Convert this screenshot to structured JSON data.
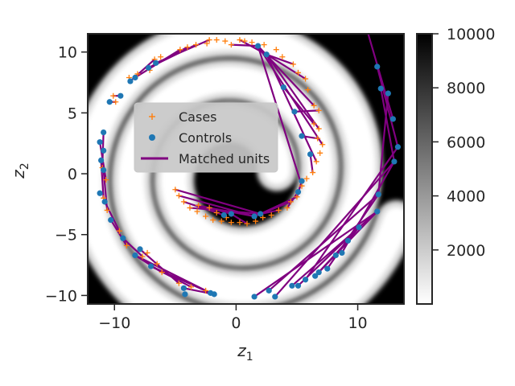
{
  "chart_data": {
    "type": "scatter",
    "xlabel_var": "z",
    "xlabel_sub": "1",
    "ylabel_var": "z",
    "ylabel_sub": "2",
    "xlim": [
      -12.2,
      13.8
    ],
    "ylim": [
      -10.7,
      11.5
    ],
    "xticks": [
      {
        "v": -10,
        "label": "−10"
      },
      {
        "v": 0,
        "label": "0"
      },
      {
        "v": 10,
        "label": "10"
      }
    ],
    "yticks": [
      {
        "v": -10,
        "label": "−10"
      },
      {
        "v": -5,
        "label": "−5"
      },
      {
        "v": 0,
        "label": "0"
      },
      {
        "v": 5,
        "label": "5"
      },
      {
        "v": 10,
        "label": "10"
      }
    ],
    "background": {
      "description_free": true,
      "density_band_width": 1.1,
      "spiral": {
        "a": 0.56,
        "b": 0.35,
        "t_start": 6.0,
        "t_end": 24.5
      }
    },
    "colorbar": {
      "vmin": 0,
      "vmax": 10000,
      "ticks": [
        {
          "v": 2000,
          "label": "2000"
        },
        {
          "v": 4000,
          "label": "4000"
        },
        {
          "v": 6000,
          "label": "6000"
        },
        {
          "v": 8000,
          "label": "8000"
        },
        {
          "v": 10000,
          "label": "10000"
        }
      ]
    },
    "legend": {
      "placement": "center-left",
      "entries": [
        {
          "key": "cases",
          "label": "Cases",
          "color": "#ff7f0e",
          "marker": "plus"
        },
        {
          "key": "controls",
          "label": "Controls",
          "color": "#1f77b4",
          "marker": "circle"
        },
        {
          "key": "matched",
          "label": "Matched units",
          "color": "#800080",
          "marker": "line"
        }
      ]
    },
    "series": [
      {
        "name": "Controls",
        "color": "#1f77b4",
        "points": [
          [
            -10.9,
            3.4
          ],
          [
            -11.2,
            2.6
          ],
          [
            -10.9,
            1.9
          ],
          [
            -11.1,
            1.1
          ],
          [
            -10.9,
            0.3
          ],
          [
            -10.8,
            -2.3
          ],
          [
            -11.2,
            -1.6
          ],
          [
            -10.3,
            -3.8
          ],
          [
            -9.3,
            -5.3
          ],
          [
            -7.9,
            -6.2
          ],
          [
            -8.3,
            -6.7
          ],
          [
            -7.0,
            -7.6
          ],
          [
            -4.3,
            -9.4
          ],
          [
            -4.2,
            -9.9
          ],
          [
            -2.1,
            -9.8
          ],
          [
            -1.8,
            -9.9
          ],
          [
            -10.4,
            5.9
          ],
          [
            -9.5,
            6.4
          ],
          [
            -8.7,
            7.6
          ],
          [
            -8.3,
            7.9
          ],
          [
            -7.2,
            8.7
          ],
          [
            -6.6,
            9.1
          ],
          [
            1.5,
            -10.1
          ],
          [
            2.7,
            -9.6
          ],
          [
            3.2,
            -10.1
          ],
          [
            4.6,
            -9.2
          ],
          [
            5.1,
            -9.2
          ],
          [
            5.7,
            -8.7
          ],
          [
            6.5,
            -8.4
          ],
          [
            6.8,
            -8.1
          ],
          [
            7.5,
            -7.8
          ],
          [
            8.2,
            -6.7
          ],
          [
            8.7,
            -6.5
          ],
          [
            9.2,
            -5.5
          ],
          [
            10.1,
            -4.4
          ],
          [
            10.8,
            11.7
          ],
          [
            11.6,
            8.8
          ],
          [
            11.9,
            7.0
          ],
          [
            12.5,
            6.6
          ],
          [
            12.9,
            4.5
          ],
          [
            13.3,
            2.2
          ],
          [
            13.0,
            1.0
          ],
          [
            11.6,
            -3.1
          ],
          [
            11.7,
            -1.7
          ],
          [
            2.5,
            9.8
          ],
          [
            1.8,
            10.5
          ],
          [
            2.0,
            -3.3
          ],
          [
            1.5,
            -3.5
          ],
          [
            -0.4,
            -3.3
          ],
          [
            -1.0,
            -3.4
          ],
          [
            6.1,
            1.6
          ],
          [
            5.4,
            3.1
          ],
          [
            4.8,
            5.1
          ],
          [
            3.9,
            7.1
          ],
          [
            5.4,
            -0.6
          ],
          [
            5.1,
            -1.5
          ]
        ]
      },
      {
        "name": "Cases",
        "color": "#ff7f0e",
        "points": [
          [
            -11.0,
            0.5
          ],
          [
            -10.7,
            -0.5
          ],
          [
            -10.9,
            -2.0
          ],
          [
            -10.6,
            -3.0
          ],
          [
            -9.6,
            -4.7
          ],
          [
            -9.0,
            -5.9
          ],
          [
            -7.7,
            -6.8
          ],
          [
            -7.3,
            -6.5
          ],
          [
            -6.5,
            -7.4
          ],
          [
            -6.1,
            -8.1
          ],
          [
            -4.7,
            -9.0
          ],
          [
            -3.7,
            -9.3
          ],
          [
            -2.5,
            -9.6
          ],
          [
            -9.9,
            5.9
          ],
          [
            -10.1,
            6.4
          ],
          [
            -8.8,
            7.9
          ],
          [
            -8.1,
            8.2
          ],
          [
            -7.1,
            8.5
          ],
          [
            -6.7,
            9.4
          ],
          [
            -6.2,
            9.6
          ],
          [
            -4.6,
            10.2
          ],
          [
            -4.0,
            10.4
          ],
          [
            -3.3,
            10.6
          ],
          [
            -2.4,
            10.7
          ],
          [
            -2.2,
            11.0
          ],
          [
            -1.6,
            11.0
          ],
          [
            -0.9,
            10.9
          ],
          [
            0.3,
            11.0
          ],
          [
            -0.4,
            10.6
          ],
          [
            0.7,
            10.9
          ],
          [
            1.3,
            10.8
          ],
          [
            2.3,
            10.6
          ],
          [
            3.3,
            10.2
          ],
          [
            3.8,
            9.6
          ],
          [
            4.7,
            9.0
          ],
          [
            5.1,
            8.3
          ],
          [
            5.7,
            7.8
          ],
          [
            5.9,
            6.9
          ],
          [
            6.4,
            5.6
          ],
          [
            6.8,
            5.2
          ],
          [
            6.4,
            4.1
          ],
          [
            6.8,
            3.7
          ],
          [
            6.7,
            2.9
          ],
          [
            7.1,
            2.4
          ],
          [
            6.9,
            1.7
          ],
          [
            6.6,
            1.0
          ],
          [
            6.3,
            0.1
          ],
          [
            5.8,
            -0.4
          ],
          [
            5.4,
            -1.0
          ],
          [
            5.0,
            -1.9
          ],
          [
            4.5,
            -2.3
          ],
          [
            4.2,
            -2.8
          ],
          [
            3.5,
            -3.0
          ],
          [
            2.9,
            -3.4
          ],
          [
            2.2,
            -3.6
          ],
          [
            1.6,
            -3.9
          ],
          [
            0.9,
            -4.1
          ],
          [
            0.3,
            -4.0
          ],
          [
            -0.4,
            -4.0
          ],
          [
            -1.2,
            -3.9
          ],
          [
            -1.9,
            -3.8
          ],
          [
            -2.5,
            -3.5
          ],
          [
            -3.2,
            -3.1
          ],
          [
            -3.8,
            -2.8
          ],
          [
            -4.3,
            -2.3
          ],
          [
            -4.7,
            -1.8
          ],
          [
            -5.0,
            -1.3
          ],
          [
            -2.2,
            -2.8
          ],
          [
            -3.1,
            -2.6
          ],
          [
            -1.6,
            -3.2
          ],
          [
            -0.8,
            -3.6
          ]
        ]
      }
    ],
    "matched_lines": [
      [
        [
          -10.9,
          3.4
        ],
        [
          -11.0,
          0.5
        ]
      ],
      [
        [
          -11.2,
          2.6
        ],
        [
          -10.7,
          -0.5
        ]
      ],
      [
        [
          -11.1,
          1.1
        ],
        [
          -10.9,
          -2.0
        ]
      ],
      [
        [
          -10.9,
          0.3
        ],
        [
          -10.6,
          -3.0
        ]
      ],
      [
        [
          -10.8,
          -2.3
        ],
        [
          -9.6,
          -4.7
        ]
      ],
      [
        [
          -10.3,
          -3.8
        ],
        [
          -9.0,
          -5.9
        ]
      ],
      [
        [
          -9.3,
          -5.3
        ],
        [
          -7.7,
          -6.8
        ]
      ],
      [
        [
          -8.3,
          -6.7
        ],
        [
          -6.1,
          -8.1
        ]
      ],
      [
        [
          -7.9,
          -6.2
        ],
        [
          -4.7,
          -9.0
        ]
      ],
      [
        [
          -7.0,
          -7.6
        ],
        [
          -3.7,
          -9.3
        ]
      ],
      [
        [
          -8.3,
          -6.7
        ],
        [
          -2.5,
          -9.6
        ]
      ],
      [
        [
          -7.0,
          -7.6
        ],
        [
          -2.1,
          -9.8
        ]
      ],
      [
        [
          -4.3,
          -9.4
        ],
        [
          -1.8,
          -9.9
        ]
      ],
      [
        [
          -10.4,
          5.9
        ],
        [
          -9.9,
          5.9
        ]
      ],
      [
        [
          -9.5,
          6.4
        ],
        [
          -10.1,
          6.4
        ]
      ],
      [
        [
          -8.7,
          7.6
        ],
        [
          -6.7,
          9.4
        ]
      ],
      [
        [
          -8.3,
          7.9
        ],
        [
          -4.6,
          10.2
        ]
      ],
      [
        [
          -7.2,
          8.7
        ],
        [
          -3.3,
          10.6
        ]
      ],
      [
        [
          -6.6,
          9.1
        ],
        [
          -2.2,
          11.0
        ]
      ],
      [
        [
          -7.2,
          8.7
        ],
        [
          -4.0,
          10.4
        ]
      ],
      [
        [
          2.5,
          9.8
        ],
        [
          0.3,
          11.0
        ]
      ],
      [
        [
          1.8,
          10.5
        ],
        [
          -0.4,
          10.6
        ]
      ],
      [
        [
          2.5,
          9.8
        ],
        [
          4.7,
          9.0
        ]
      ],
      [
        [
          2.5,
          9.8
        ],
        [
          5.7,
          7.8
        ]
      ],
      [
        [
          1.8,
          10.5
        ],
        [
          6.4,
          5.6
        ]
      ],
      [
        [
          2.5,
          9.8
        ],
        [
          6.8,
          3.7
        ]
      ],
      [
        [
          1.8,
          10.5
        ],
        [
          7.1,
          2.4
        ]
      ],
      [
        [
          2.5,
          9.8
        ],
        [
          6.6,
          1.0
        ]
      ],
      [
        [
          1.8,
          10.5
        ],
        [
          5.4,
          -1.0
        ]
      ],
      [
        [
          4.8,
          5.1
        ],
        [
          6.8,
          5.2
        ]
      ],
      [
        [
          3.9,
          7.1
        ],
        [
          6.4,
          4.1
        ]
      ],
      [
        [
          5.4,
          3.1
        ],
        [
          6.7,
          2.9
        ]
      ],
      [
        [
          6.1,
          1.6
        ],
        [
          6.3,
          0.1
        ]
      ],
      [
        [
          5.4,
          -0.6
        ],
        [
          5.0,
          -1.9
        ]
      ],
      [
        [
          5.1,
          -1.5
        ],
        [
          4.2,
          -2.8
        ]
      ],
      [
        [
          2.0,
          -3.3
        ],
        [
          -3.8,
          -2.8
        ]
      ],
      [
        [
          1.5,
          -3.5
        ],
        [
          -4.7,
          -1.8
        ]
      ],
      [
        [
          2.0,
          -3.3
        ],
        [
          -5.0,
          -1.3
        ]
      ],
      [
        [
          1.5,
          -3.5
        ],
        [
          -3.2,
          -2.6
        ]
      ],
      [
        [
          -0.4,
          -3.3
        ],
        [
          -2.2,
          -2.8
        ]
      ],
      [
        [
          -1.0,
          -3.4
        ],
        [
          -4.3,
          -2.3
        ]
      ],
      [
        [
          2.0,
          -3.3
        ],
        [
          5.0,
          -1.9
        ]
      ],
      [
        [
          1.5,
          -3.5
        ],
        [
          4.5,
          -2.3
        ]
      ],
      [
        [
          2.0,
          -3.3
        ],
        [
          3.5,
          -3.0
        ]
      ],
      [
        [
          -0.4,
          -3.3
        ],
        [
          0.9,
          -4.1
        ]
      ],
      [
        [
          10.8,
          11.7
        ],
        [
          12.9,
          4.5
        ]
      ],
      [
        [
          11.6,
          8.8
        ],
        [
          13.3,
          2.2
        ]
      ],
      [
        [
          11.9,
          7.0
        ],
        [
          13.0,
          1.0
        ]
      ],
      [
        [
          12.5,
          6.6
        ],
        [
          11.7,
          -1.7
        ]
      ],
      [
        [
          1.5,
          -10.1
        ],
        [
          11.6,
          -3.1
        ]
      ],
      [
        [
          2.7,
          -9.6
        ],
        [
          11.7,
          -1.7
        ]
      ],
      [
        [
          3.2,
          -10.1
        ],
        [
          13.0,
          1.0
        ]
      ],
      [
        [
          4.6,
          -9.2
        ],
        [
          11.6,
          -3.1
        ]
      ],
      [
        [
          5.1,
          -9.2
        ],
        [
          10.1,
          -4.4
        ]
      ],
      [
        [
          5.7,
          -8.7
        ],
        [
          13.3,
          2.2
        ]
      ],
      [
        [
          6.5,
          -8.4
        ],
        [
          9.2,
          -5.5
        ]
      ],
      [
        [
          6.8,
          -8.1
        ],
        [
          11.6,
          -3.1
        ]
      ],
      [
        [
          7.5,
          -7.8
        ],
        [
          11.7,
          -1.7
        ]
      ],
      [
        [
          8.2,
          -6.7
        ],
        [
          10.1,
          -4.4
        ]
      ],
      [
        [
          8.7,
          -6.5
        ],
        [
          13.0,
          1.0
        ]
      ]
    ]
  }
}
